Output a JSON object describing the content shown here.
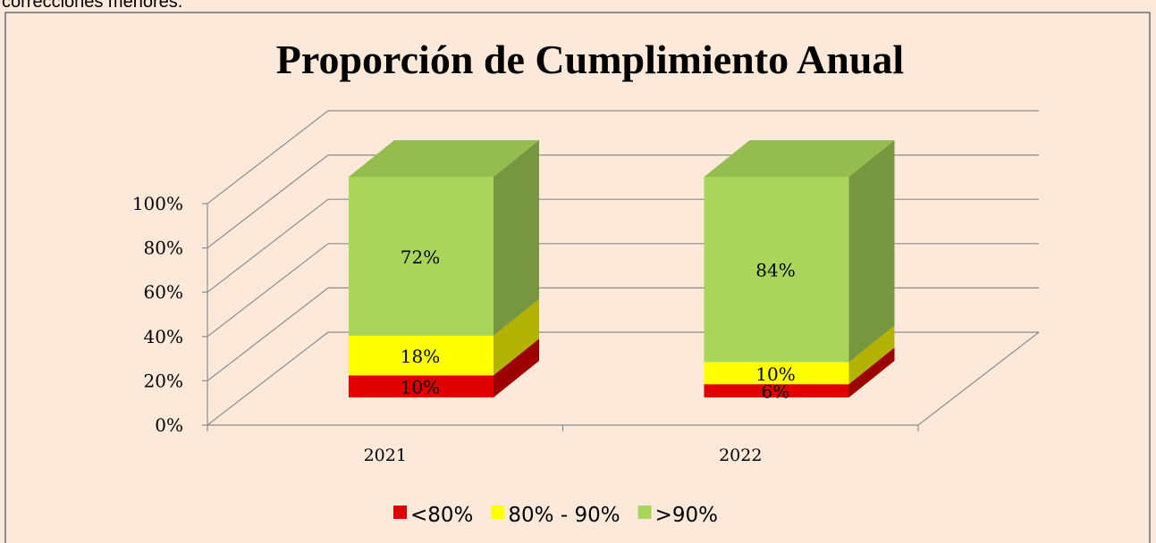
{
  "caption": "correcciones menores.",
  "chart_data": {
    "type": "bar3d_stacked",
    "title": "Proporción de Cumplimiento Anual",
    "categories": [
      "2021",
      "2022"
    ],
    "series": [
      {
        "name": "<80%",
        "color": "#e00000",
        "values": [
          10,
          6
        ],
        "value_labels": [
          "10%",
          "6%"
        ]
      },
      {
        "name": "80% - 90%",
        "color": "#ffff00",
        "values": [
          18,
          10
        ],
        "value_labels": [
          "18%",
          "10%"
        ]
      },
      {
        "name": ">90%",
        "color": "#a9d65a",
        "values": [
          72,
          84
        ],
        "value_labels": [
          "72%",
          "84%"
        ]
      }
    ],
    "ylim": [
      0,
      100
    ],
    "yticks": [
      {
        "value": 0,
        "label": "0%"
      },
      {
        "value": 20,
        "label": "20%"
      },
      {
        "value": 40,
        "label": "40%"
      },
      {
        "value": 60,
        "label": "60%"
      },
      {
        "value": 80,
        "label": "80%"
      },
      {
        "value": 100,
        "label": "100%"
      }
    ],
    "grid": true,
    "legend": "bottom"
  }
}
